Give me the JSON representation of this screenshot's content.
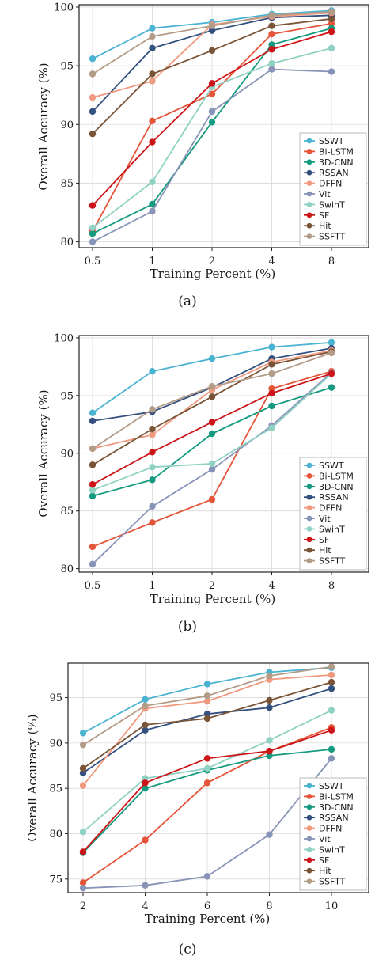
{
  "palette": {
    "SSWT": "#4bb3d2",
    "Bi-LSTM": "#e4553a",
    "3D-CNN": "#149a7e",
    "RSSAN": "#34507f",
    "DFFN": "#f09a80",
    "Vit": "#8893b8",
    "SwinT": "#8fd1c2",
    "SF": "#cc1518",
    "Hit": "#7a5437",
    "SSFTT": "#b39c87"
  },
  "chart_data": [
    {
      "type": "line",
      "caption": "(a)",
      "xlabel": "Training Percent (%)",
      "ylabel": "Overall Accuracy (%)",
      "x": [
        "0.5",
        "1",
        "2",
        "4",
        "8"
      ],
      "ylim": [
        79.5,
        100.2
      ],
      "yticks": [
        80,
        85,
        90,
        95,
        100
      ],
      "grid": true,
      "legend": "bottom-right",
      "series": [
        {
          "name": "SSWT",
          "values": [
            95.6,
            98.2,
            98.7,
            99.4,
            99.7
          ]
        },
        {
          "name": "Bi-LSTM",
          "values": [
            80.9,
            90.3,
            92.6,
            97.7,
            98.6
          ]
        },
        {
          "name": "3D-CNN",
          "values": [
            80.7,
            83.2,
            90.2,
            96.8,
            98.2
          ]
        },
        {
          "name": "RSSAN",
          "values": [
            91.1,
            96.5,
            98.0,
            99.1,
            99.3
          ]
        },
        {
          "name": "DFFN",
          "values": [
            92.3,
            93.7,
            98.5,
            99.2,
            99.5
          ]
        },
        {
          "name": "Vit",
          "values": [
            80.0,
            82.6,
            91.1,
            94.7,
            94.5
          ]
        },
        {
          "name": "SwinT",
          "values": [
            81.2,
            85.1,
            93.2,
            95.2,
            96.5
          ]
        },
        {
          "name": "SF",
          "values": [
            83.1,
            88.5,
            93.5,
            96.4,
            97.9
          ]
        },
        {
          "name": "Hit",
          "values": [
            89.2,
            94.3,
            96.3,
            98.4,
            99.0
          ]
        },
        {
          "name": "SSFTT",
          "values": [
            94.3,
            97.5,
            98.4,
            99.3,
            99.6
          ]
        }
      ]
    },
    {
      "type": "line",
      "caption": "(b)",
      "xlabel": "Training Percent (%)",
      "ylabel": "Overall Accuracy (%)",
      "x": [
        "0.5",
        "1",
        "2",
        "4",
        "8"
      ],
      "ylim": [
        79.7,
        100.2
      ],
      "yticks": [
        80,
        85,
        90,
        95,
        100
      ],
      "grid": true,
      "legend": "bottom-right",
      "series": [
        {
          "name": "SSWT",
          "values": [
            93.5,
            97.1,
            98.2,
            99.2,
            99.6
          ]
        },
        {
          "name": "Bi-LSTM",
          "values": [
            81.9,
            84.0,
            86.0,
            95.6,
            97.1
          ]
        },
        {
          "name": "3D-CNN",
          "values": [
            86.3,
            87.7,
            91.7,
            94.1,
            95.7
          ]
        },
        {
          "name": "RSSAN",
          "values": [
            92.8,
            93.6,
            95.7,
            98.2,
            99.1
          ]
        },
        {
          "name": "DFFN",
          "values": [
            90.4,
            91.6,
            95.5,
            97.9,
            98.9
          ]
        },
        {
          "name": "Vit",
          "values": [
            80.4,
            85.4,
            88.6,
            92.4,
            97.0
          ]
        },
        {
          "name": "SwinT",
          "values": [
            86.8,
            88.8,
            89.1,
            92.2,
            96.9
          ]
        },
        {
          "name": "SF",
          "values": [
            87.3,
            90.1,
            92.7,
            95.2,
            96.9
          ]
        },
        {
          "name": "Hit",
          "values": [
            89.0,
            92.1,
            94.9,
            97.7,
            98.8
          ]
        },
        {
          "name": "SSFTT",
          "values": [
            90.4,
            93.8,
            95.8,
            96.9,
            98.7
          ]
        }
      ]
    },
    {
      "type": "line",
      "caption": "(c)",
      "xlabel": "Training Percent (%)",
      "ylabel": "Overall Accuracy (%)",
      "x": [
        "2",
        "4",
        "6",
        "8",
        "10"
      ],
      "ylim": [
        73.5,
        98.8
      ],
      "yticks": [
        75,
        80,
        85,
        90,
        95
      ],
      "grid": true,
      "legend": "bottom-right",
      "series": [
        {
          "name": "SSWT",
          "values": [
            91.1,
            94.8,
            96.5,
            97.8,
            98.3
          ]
        },
        {
          "name": "Bi-LSTM",
          "values": [
            74.6,
            79.3,
            85.6,
            89.1,
            91.7
          ]
        },
        {
          "name": "3D-CNN",
          "values": [
            77.9,
            85.0,
            87.0,
            88.6,
            89.3
          ]
        },
        {
          "name": "RSSAN",
          "values": [
            86.7,
            91.4,
            93.2,
            93.9,
            96.0
          ]
        },
        {
          "name": "DFFN",
          "values": [
            85.3,
            93.8,
            94.6,
            97.0,
            97.5
          ]
        },
        {
          "name": "Vit",
          "values": [
            74.0,
            74.3,
            75.3,
            79.9,
            88.3
          ]
        },
        {
          "name": "SwinT",
          "values": [
            80.2,
            86.1,
            87.2,
            90.3,
            93.6
          ]
        },
        {
          "name": "SF",
          "values": [
            78.0,
            85.6,
            88.3,
            89.1,
            91.4
          ]
        },
        {
          "name": "Hit",
          "values": [
            87.2,
            92.0,
            92.7,
            94.7,
            96.7
          ]
        },
        {
          "name": "SSFTT",
          "values": [
            89.8,
            94.1,
            95.2,
            97.4,
            98.4
          ]
        }
      ]
    }
  ]
}
